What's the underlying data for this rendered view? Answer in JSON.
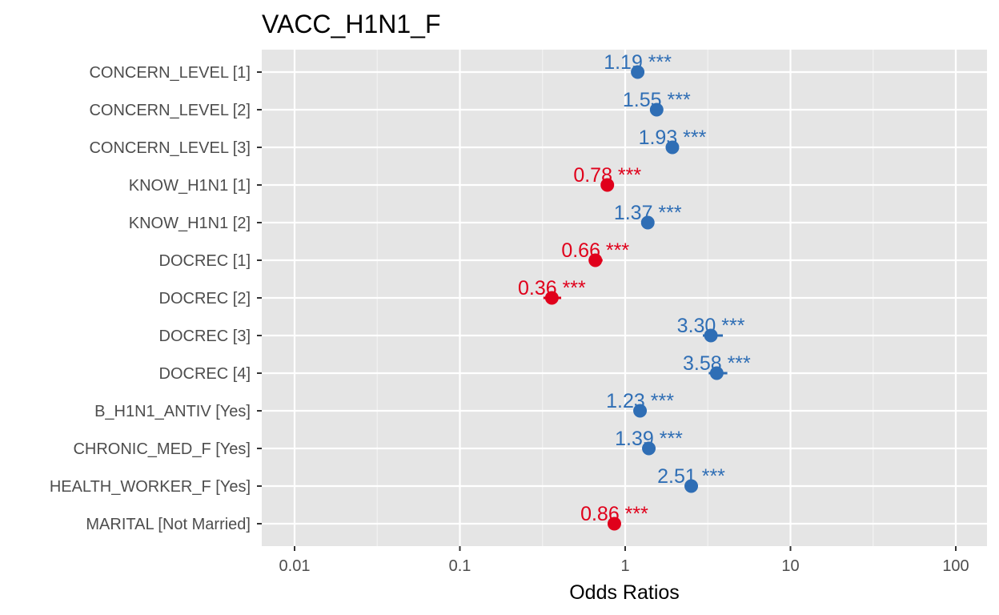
{
  "chart_data": {
    "type": "scatter",
    "title": "VACC_H1N1_F",
    "xlabel": "Odds Ratios",
    "ylabel": "",
    "x_scale": "log10",
    "xlim": [
      0.01,
      100
    ],
    "x_ticks": [
      "0.01",
      "0.1",
      "1",
      "10",
      "100"
    ],
    "grid": true,
    "legend": "none",
    "colors": {
      "positive": "#2f6eb5",
      "negative": "#e0001b"
    },
    "categories": [
      "CONCERN_LEVEL [1]",
      "CONCERN_LEVEL [2]",
      "CONCERN_LEVEL [3]",
      "KNOW_H1N1 [1]",
      "KNOW_H1N1 [2]",
      "DOCREC [1]",
      "DOCREC [2]",
      "DOCREC [3]",
      "DOCREC [4]",
      "B_H1N1_ANTIV [Yes]",
      "CHRONIC_MED_F [Yes]",
      "HEALTH_WORKER_F [Yes]",
      "MARITAL [Not Married]"
    ],
    "values": [
      1.19,
      1.55,
      1.93,
      0.78,
      1.37,
      0.66,
      0.36,
      3.3,
      3.58,
      1.23,
      1.39,
      2.51,
      0.86
    ],
    "conf_low": [
      1.15,
      1.49,
      1.85,
      0.74,
      1.31,
      0.61,
      0.32,
      2.95,
      3.2,
      1.19,
      1.34,
      2.4,
      0.83
    ],
    "conf_high": [
      1.23,
      1.62,
      2.02,
      0.82,
      1.43,
      0.73,
      0.41,
      3.9,
      4.15,
      1.28,
      1.45,
      2.63,
      0.89
    ],
    "labels": [
      "1.19 ***",
      "1.55 ***",
      "1.93 ***",
      "0.78 ***",
      "1.37 ***",
      "0.66 ***",
      "0.36 ***",
      "3.30 ***",
      "3.58 ***",
      "1.23 ***",
      "1.39 ***",
      "2.51 ***",
      "0.86 ***"
    ]
  }
}
